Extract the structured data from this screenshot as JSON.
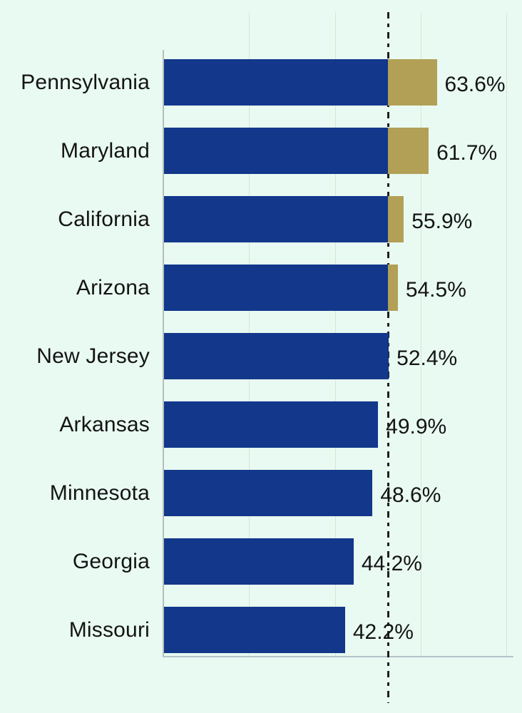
{
  "chart_data": {
    "type": "bar",
    "orientation": "horizontal",
    "categories": [
      "Pennsylvania",
      "Maryland",
      "California",
      "Arizona",
      "New Jersey",
      "Arkansas",
      "Minnesota",
      "Georgia",
      "Missouri"
    ],
    "values": [
      63.6,
      61.7,
      55.9,
      54.5,
      52.4,
      49.9,
      48.6,
      44.2,
      42.2
    ],
    "value_labels": [
      "63.6%",
      "61.7%",
      "55.9%",
      "54.5%",
      "52.4%",
      "49.9%",
      "48.6%",
      "44.2%",
      "42.2%"
    ],
    "reference_line_value": 52.4,
    "gridline_values": [
      20,
      40,
      60,
      80
    ],
    "xlim": [
      0,
      83.5
    ],
    "grid": true,
    "legend": null,
    "colors": {
      "bar": "#12378b",
      "bar_above_reference": "#b2a057",
      "background": "#e9faf2",
      "reference_line": "#1f1f1f",
      "text": "#141414",
      "axis": "#b3bfba"
    }
  }
}
